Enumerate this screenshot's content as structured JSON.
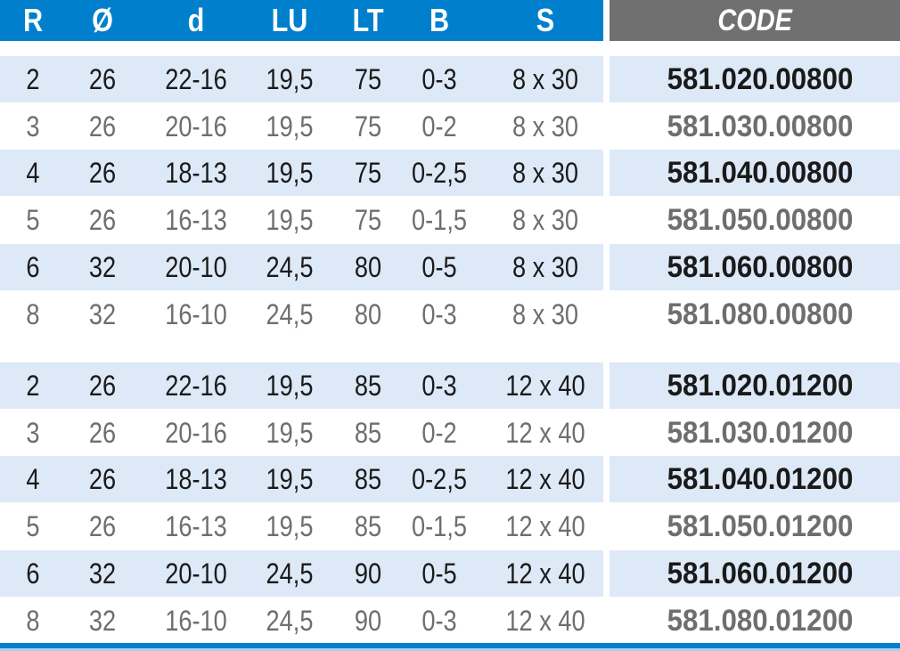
{
  "header": {
    "columns": [
      "R",
      "Ø",
      "d",
      "LU",
      "LT",
      "B",
      "S"
    ],
    "code": "CODE"
  },
  "colors": {
    "header_blue": "#0080cc",
    "header_gray": "#707070",
    "row_shade": "#dde9f7"
  },
  "groups": [
    {
      "rows": [
        [
          "2",
          "26",
          "22-16",
          "19,5",
          "75",
          "0-3",
          "8 x 30",
          "581.020.00800"
        ],
        [
          "3",
          "26",
          "20-16",
          "19,5",
          "75",
          "0-2",
          "8 x 30",
          "581.030.00800"
        ],
        [
          "4",
          "26",
          "18-13",
          "19,5",
          "75",
          "0-2,5",
          "8 x 30",
          "581.040.00800"
        ],
        [
          "5",
          "26",
          "16-13",
          "19,5",
          "75",
          "0-1,5",
          "8 x 30",
          "581.050.00800"
        ],
        [
          "6",
          "32",
          "20-10",
          "24,5",
          "80",
          "0-5",
          "8 x 30",
          "581.060.00800"
        ],
        [
          "8",
          "32",
          "16-10",
          "24,5",
          "80",
          "0-3",
          "8 x 30",
          "581.080.00800"
        ]
      ]
    },
    {
      "rows": [
        [
          "2",
          "26",
          "22-16",
          "19,5",
          "85",
          "0-3",
          "12 x 40",
          "581.020.01200"
        ],
        [
          "3",
          "26",
          "20-16",
          "19,5",
          "85",
          "0-2",
          "12 x 40",
          "581.030.01200"
        ],
        [
          "4",
          "26",
          "18-13",
          "19,5",
          "85",
          "0-2,5",
          "12 x 40",
          "581.040.01200"
        ],
        [
          "5",
          "26",
          "16-13",
          "19,5",
          "85",
          "0-1,5",
          "12 x 40",
          "581.050.01200"
        ],
        [
          "6",
          "32",
          "20-10",
          "24,5",
          "90",
          "0-5",
          "12 x 40",
          "581.060.01200"
        ],
        [
          "8",
          "32",
          "16-10",
          "24,5",
          "90",
          "0-3",
          "12 x 40",
          "581.080.01200"
        ]
      ]
    }
  ]
}
